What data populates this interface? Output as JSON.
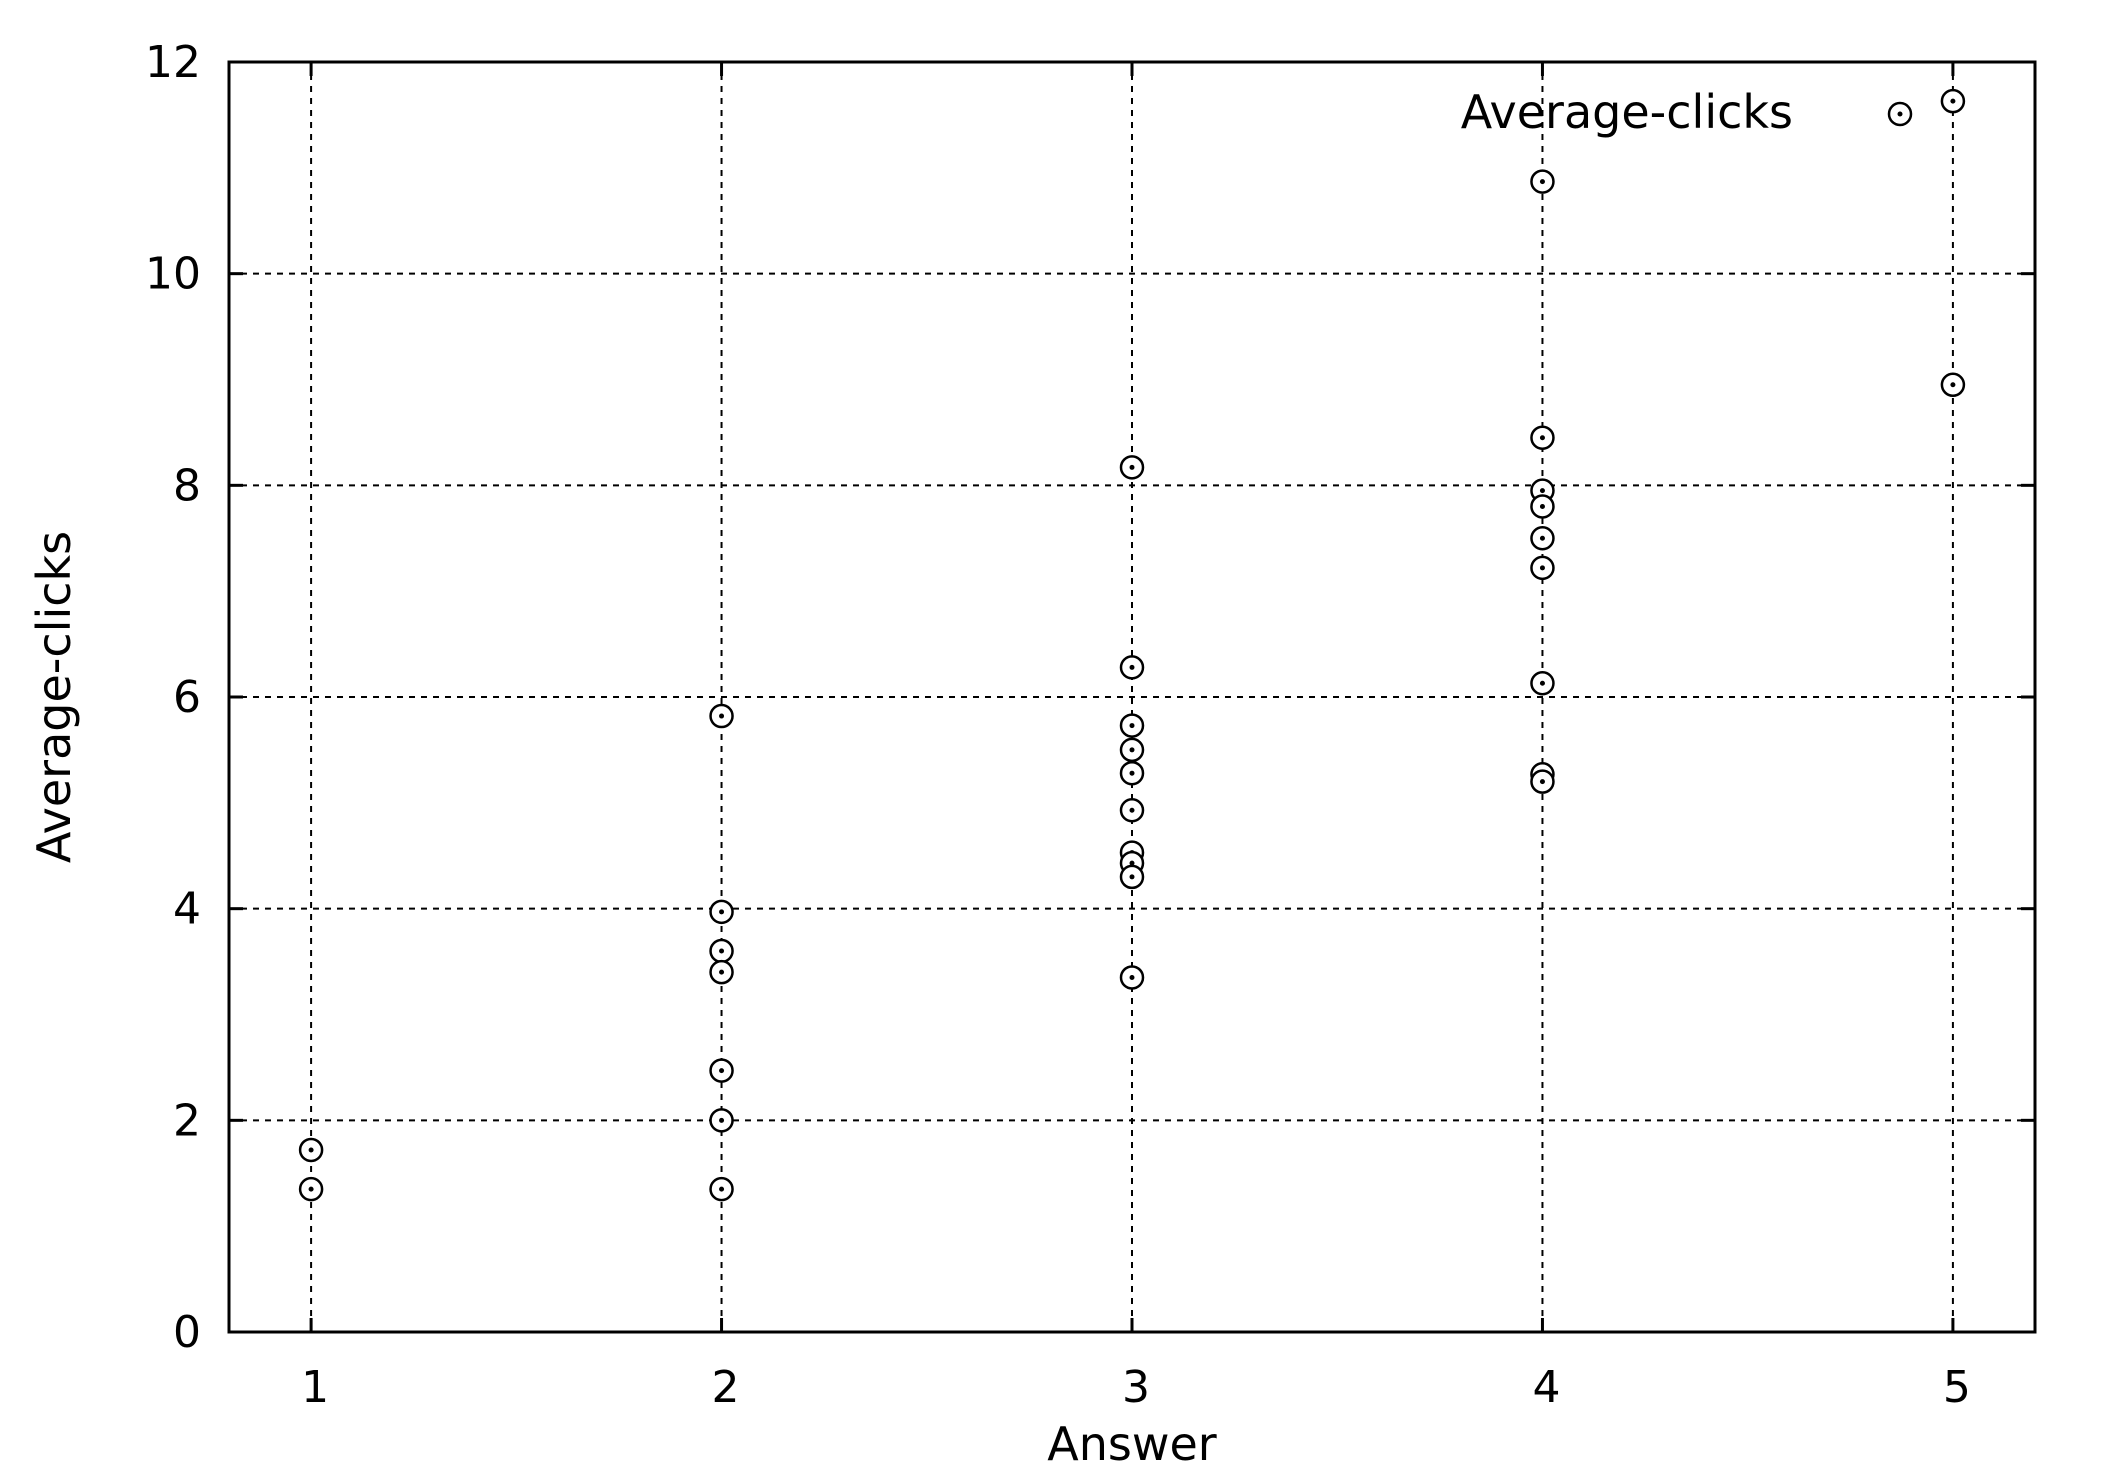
{
  "chart_data": {
    "type": "scatter",
    "title": "",
    "xlabel": "Answer",
    "ylabel": "Average-clicks",
    "xlim": [
      0.8,
      5.2
    ],
    "ylim": [
      0,
      12
    ],
    "x_ticks": [
      1,
      2,
      3,
      4,
      5
    ],
    "y_ticks": [
      0,
      2,
      4,
      6,
      8,
      10,
      12
    ],
    "grid": true,
    "legend_position": "top-right",
    "series": [
      {
        "name": "Average-clicks",
        "marker": "open-circle-with-dot",
        "color": "#000000",
        "points": [
          {
            "x": 1,
            "y": 1.72
          },
          {
            "x": 1,
            "y": 1.35
          },
          {
            "x": 2,
            "y": 5.82
          },
          {
            "x": 2,
            "y": 3.97
          },
          {
            "x": 2,
            "y": 3.6
          },
          {
            "x": 2,
            "y": 3.4
          },
          {
            "x": 2,
            "y": 2.47
          },
          {
            "x": 2,
            "y": 2.0
          },
          {
            "x": 2,
            "y": 1.35
          },
          {
            "x": 3,
            "y": 8.17
          },
          {
            "x": 3,
            "y": 6.28
          },
          {
            "x": 3,
            "y": 5.73
          },
          {
            "x": 3,
            "y": 5.5
          },
          {
            "x": 3,
            "y": 5.28
          },
          {
            "x": 3,
            "y": 4.93
          },
          {
            "x": 3,
            "y": 4.53
          },
          {
            "x": 3,
            "y": 4.43
          },
          {
            "x": 3,
            "y": 4.3
          },
          {
            "x": 3,
            "y": 3.35
          },
          {
            "x": 4,
            "y": 10.87
          },
          {
            "x": 4,
            "y": 8.45
          },
          {
            "x": 4,
            "y": 7.95
          },
          {
            "x": 4,
            "y": 7.8
          },
          {
            "x": 4,
            "y": 7.5
          },
          {
            "x": 4,
            "y": 7.22
          },
          {
            "x": 4,
            "y": 6.13
          },
          {
            "x": 4,
            "y": 5.27
          },
          {
            "x": 4,
            "y": 5.2
          },
          {
            "x": 5,
            "y": 11.63
          },
          {
            "x": 5,
            "y": 8.95
          }
        ]
      }
    ]
  }
}
